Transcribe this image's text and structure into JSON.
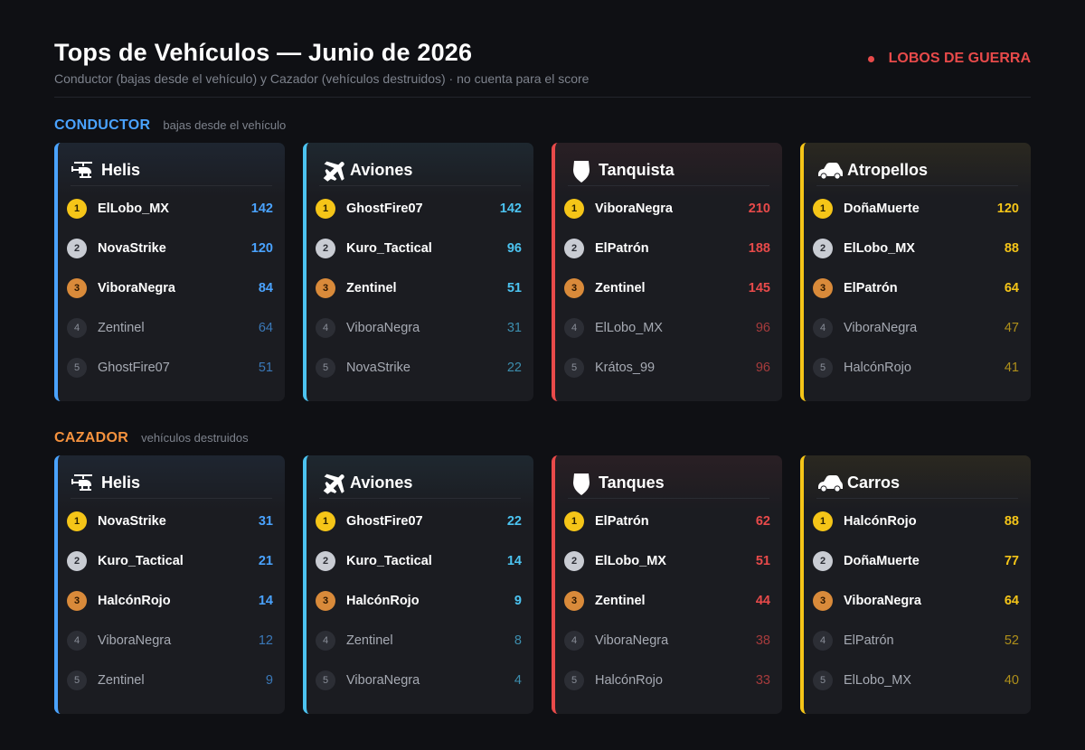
{
  "header": {
    "title": "Tops de Vehículos — Junio de 2026",
    "subtitle": "Conductor (bajas desde el vehículo) y Cazador (vehículos destruidos) · no cuenta para el score",
    "clan_name": "LOBOS DE GUERRA",
    "clan_color": "#e84a4a"
  },
  "sections": [
    {
      "title": "CONDUCTOR",
      "subtitle": "bajas desde el vehículo",
      "color": "#4aa3ff",
      "cards": [
        {
          "title": "Helis",
          "icon": "helicopter-icon",
          "accent": "#4aa3ff",
          "rows": [
            {
              "rank": "1",
              "name": "ElLobo_MX",
              "value": "142"
            },
            {
              "rank": "2",
              "name": "NovaStrike",
              "value": "120"
            },
            {
              "rank": "3",
              "name": "ViboraNegra",
              "value": "84"
            },
            {
              "rank": "4",
              "name": "Zentinel",
              "value": "64"
            },
            {
              "rank": "5",
              "name": "GhostFire07",
              "value": "51"
            }
          ]
        },
        {
          "title": "Aviones",
          "icon": "airplane-icon",
          "accent": "#4cc3f0",
          "rows": [
            {
              "rank": "1",
              "name": "GhostFire07",
              "value": "142"
            },
            {
              "rank": "2",
              "name": "Kuro_Tactical",
              "value": "96"
            },
            {
              "rank": "3",
              "name": "Zentinel",
              "value": "51"
            },
            {
              "rank": "4",
              "name": "ViboraNegra",
              "value": "31"
            },
            {
              "rank": "5",
              "name": "NovaStrike",
              "value": "22"
            }
          ]
        },
        {
          "title": "Tanquista",
          "icon": "shield-icon",
          "accent": "#e84a4a",
          "rows": [
            {
              "rank": "1",
              "name": "ViboraNegra",
              "value": "210"
            },
            {
              "rank": "2",
              "name": "ElPatrón",
              "value": "188"
            },
            {
              "rank": "3",
              "name": "Zentinel",
              "value": "145"
            },
            {
              "rank": "4",
              "name": "ElLobo_MX",
              "value": "96"
            },
            {
              "rank": "5",
              "name": "Krátos_99",
              "value": "96"
            }
          ]
        },
        {
          "title": "Atropellos",
          "icon": "car-icon",
          "accent": "#f5c518",
          "rows": [
            {
              "rank": "1",
              "name": "DoñaMuerte",
              "value": "120"
            },
            {
              "rank": "2",
              "name": "ElLobo_MX",
              "value": "88"
            },
            {
              "rank": "3",
              "name": "ElPatrón",
              "value": "64"
            },
            {
              "rank": "4",
              "name": "ViboraNegra",
              "value": "47"
            },
            {
              "rank": "5",
              "name": "HalcónRojo",
              "value": "41"
            }
          ]
        }
      ]
    },
    {
      "title": "CAZADOR",
      "subtitle": "vehículos destruidos",
      "color": "#f5923e",
      "cards": [
        {
          "title": "Helis",
          "icon": "helicopter-icon",
          "accent": "#4aa3ff",
          "rows": [
            {
              "rank": "1",
              "name": "NovaStrike",
              "value": "31"
            },
            {
              "rank": "2",
              "name": "Kuro_Tactical",
              "value": "21"
            },
            {
              "rank": "3",
              "name": "HalcónRojo",
              "value": "14"
            },
            {
              "rank": "4",
              "name": "ViboraNegra",
              "value": "12"
            },
            {
              "rank": "5",
              "name": "Zentinel",
              "value": "9"
            }
          ]
        },
        {
          "title": "Aviones",
          "icon": "airplane-icon",
          "accent": "#4cc3f0",
          "rows": [
            {
              "rank": "1",
              "name": "GhostFire07",
              "value": "22"
            },
            {
              "rank": "2",
              "name": "Kuro_Tactical",
              "value": "14"
            },
            {
              "rank": "3",
              "name": "HalcónRojo",
              "value": "9"
            },
            {
              "rank": "4",
              "name": "Zentinel",
              "value": "8"
            },
            {
              "rank": "5",
              "name": "ViboraNegra",
              "value": "4"
            }
          ]
        },
        {
          "title": "Tanques",
          "icon": "shield-icon",
          "accent": "#e84a4a",
          "rows": [
            {
              "rank": "1",
              "name": "ElPatrón",
              "value": "62"
            },
            {
              "rank": "2",
              "name": "ElLobo_MX",
              "value": "51"
            },
            {
              "rank": "3",
              "name": "Zentinel",
              "value": "44"
            },
            {
              "rank": "4",
              "name": "ViboraNegra",
              "value": "38"
            },
            {
              "rank": "5",
              "name": "HalcónRojo",
              "value": "33"
            }
          ]
        },
        {
          "title": "Carros",
          "icon": "car-icon",
          "accent": "#f5c518",
          "rows": [
            {
              "rank": "1",
              "name": "HalcónRojo",
              "value": "88"
            },
            {
              "rank": "2",
              "name": "DoñaMuerte",
              "value": "77"
            },
            {
              "rank": "3",
              "name": "ViboraNegra",
              "value": "64"
            },
            {
              "rank": "4",
              "name": "ElPatrón",
              "value": "52"
            },
            {
              "rank": "5",
              "name": "ElLobo_MX",
              "value": "40"
            }
          ]
        }
      ]
    }
  ]
}
